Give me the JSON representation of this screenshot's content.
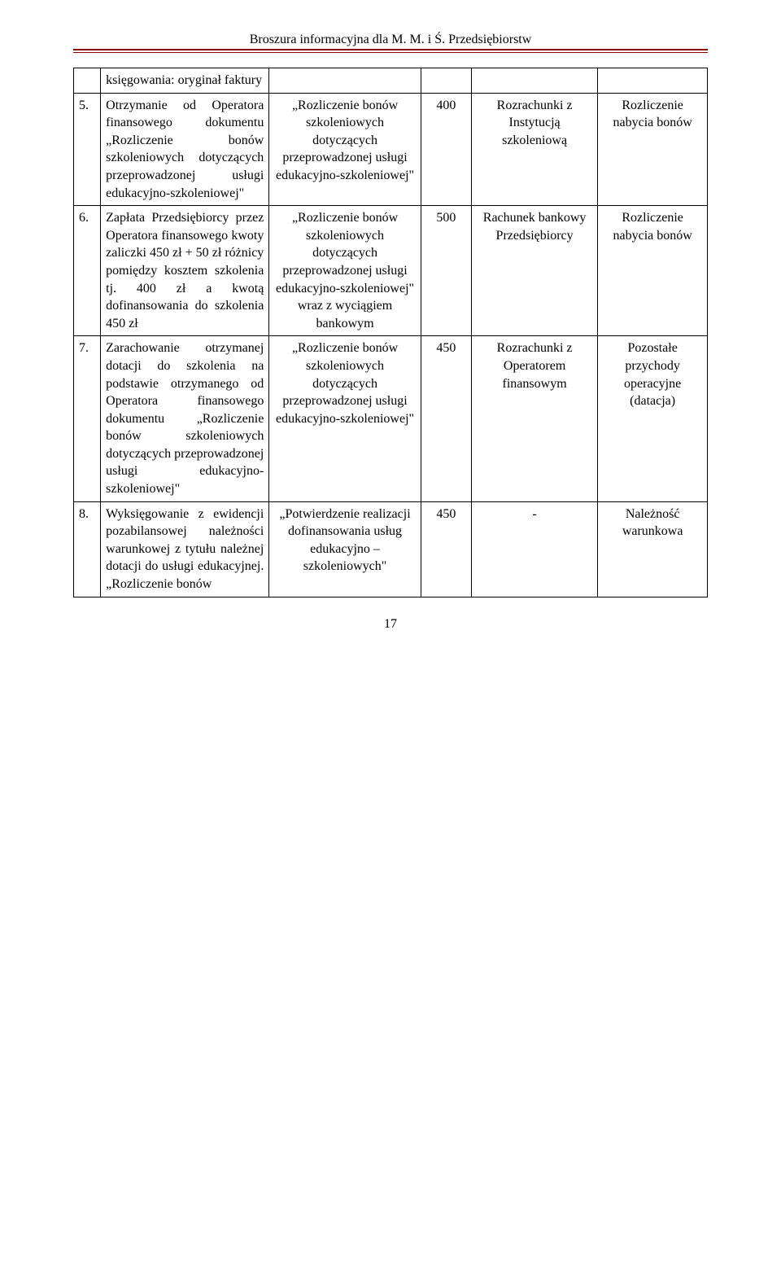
{
  "header": {
    "title": "Broszura informacyjna dla M. M. i Ś. Przedsiębiorstw"
  },
  "pageNumber": "17",
  "colors": {
    "rule": "#8b0000",
    "border": "#000000",
    "bg": "#ffffff",
    "text": "#000000"
  },
  "rows": [
    {
      "num": "",
      "desc": "księgowania: oryginał faktury",
      "doc": "",
      "amt": "",
      "acc": "",
      "res": ""
    },
    {
      "num": "5.",
      "desc": "Otrzymanie od Operatora finansowego dokumentu „Rozliczenie bonów szkoleniowych dotyczących przeprowadzonej usługi edukacyjno-szkoleniowej\"",
      "doc": "„Rozliczenie bonów szkoleniowych dotyczących przeprowadzonej usługi edukacyjno-szkoleniowej\"",
      "amt": "400",
      "acc": "Rozrachunki z Instytucją szkoleniową",
      "res": "Rozliczenie nabycia bonów"
    },
    {
      "num": "6.",
      "desc": "Zapłata Przedsiębiorcy przez Operatora finansowego kwoty zaliczki 450 zł + 50 zł różnicy pomiędzy kosztem szkolenia tj. 400 zł a kwotą dofinansowania do szkolenia 450 zł",
      "doc": "„Rozliczenie bonów szkoleniowych dotyczących przeprowadzonej usługi edukacyjno-szkoleniowej\" wraz z wyciągiem bankowym",
      "amt": "500",
      "acc": "Rachunek bankowy Przedsiębiorcy",
      "res": "Rozliczenie nabycia bonów"
    },
    {
      "num": "7.",
      "desc": "Zarachowanie otrzymanej dotacji do szkolenia na podstawie otrzymanego od Operatora finansowego dokumentu „Rozliczenie bonów szkoleniowych dotyczących przeprowadzonej usługi edukacyjno-szkoleniowej\"",
      "doc": "„Rozliczenie bonów szkoleniowych dotyczących przeprowadzonej usługi edukacyjno-szkoleniowej\"",
      "amt": "450",
      "acc": "Rozrachunki z Operatorem finansowym",
      "res": "Pozostałe przychody operacyjne (datacja)"
    },
    {
      "num": "8.",
      "desc": "Wyksięgowanie z ewidencji pozabilansowej należności warunkowej z tytułu należnej dotacji do usługi edukacyjnej. „Rozliczenie bonów",
      "doc": "„Potwierdzenie realizacji dofinansowania usług edukacyjno – szkoleniowych\"",
      "amt": "450",
      "acc": "-",
      "res": "Należność warunkowa"
    }
  ]
}
